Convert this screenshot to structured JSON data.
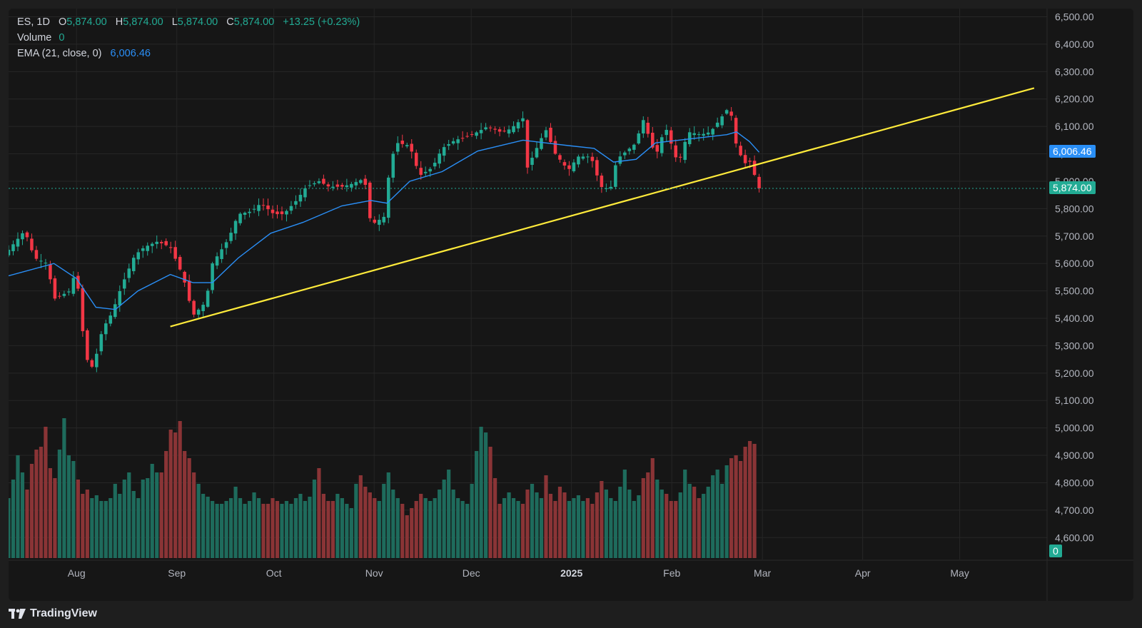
{
  "legend": {
    "symbol": "ES, 1D",
    "o_label": "O",
    "o_value": "5,874.00",
    "h_label": "H",
    "h_value": "5,874.00",
    "l_label": "L",
    "l_value": "5,874.00",
    "c_label": "C",
    "c_value": "5,874.00",
    "change": "+13.25 (+0.23%)",
    "volume_label": "Volume",
    "volume_value": "0",
    "ema_label": "EMA (21, close, 0)",
    "ema_value": "6,006.46"
  },
  "tags": {
    "ema_price": "6,006.46",
    "last_price": "5,874.00",
    "volume": "0"
  },
  "brand": {
    "name": "TradingView"
  },
  "colors": {
    "up": "#22ab94",
    "down": "#f23645",
    "ema": "#2a8ff7",
    "trendline": "#ffeb3b",
    "vol_up": "#1e6b5c",
    "vol_down": "#8a3436",
    "background": "#161616",
    "grid": "#262626"
  },
  "chart_data": {
    "type": "candlestick",
    "ylim": [
      4520,
      6530
    ],
    "y_ticks": [
      "6,500.00",
      "6,400.00",
      "6,300.00",
      "6,200.00",
      "6,100.00",
      "6,000.00",
      "5,900.00",
      "5,800.00",
      "5,700.00",
      "5,600.00",
      "5,500.00",
      "5,400.00",
      "5,300.00",
      "5,200.00",
      "5,100.00",
      "5,000.00",
      "4,900.00",
      "4,800.00",
      "4,700.00",
      "4,600.00"
    ],
    "y_tick_values": [
      6500,
      6400,
      6300,
      6200,
      6100,
      6000,
      5900,
      5800,
      5700,
      5600,
      5500,
      5400,
      5300,
      5200,
      5100,
      5000,
      4900,
      4800,
      4700,
      4600
    ],
    "x_ticks": [
      {
        "label": "Aug",
        "date": "2024-08-01"
      },
      {
        "label": "Sep",
        "date": "2024-09-01"
      },
      {
        "label": "Oct",
        "date": "2024-10-01"
      },
      {
        "label": "Nov",
        "date": "2024-11-01"
      },
      {
        "label": "Dec",
        "date": "2024-12-01"
      },
      {
        "label": "2025",
        "date": "2025-01-01",
        "bold": true
      },
      {
        "label": "Feb",
        "date": "2025-02-01"
      },
      {
        "label": "Mar",
        "date": "2025-03-01"
      },
      {
        "label": "Apr",
        "date": "2025-04-01"
      },
      {
        "label": "May",
        "date": "2025-05-01"
      }
    ],
    "x_range": [
      "2024-07-11",
      "2025-05-28"
    ],
    "ohlc_points": [
      [
        "2024-07-11",
        5650
      ],
      [
        "2024-07-16",
        5720
      ],
      [
        "2024-07-19",
        5620
      ],
      [
        "2024-07-23",
        5600
      ],
      [
        "2024-07-25",
        5470
      ],
      [
        "2024-07-30",
        5500
      ],
      [
        "2024-08-01",
        5590
      ],
      [
        "2024-08-02",
        5420
      ],
      [
        "2024-08-05",
        5200
      ],
      [
        "2024-08-07",
        5260
      ],
      [
        "2024-08-09",
        5360
      ],
      [
        "2024-08-12",
        5420
      ],
      [
        "2024-08-15",
        5520
      ],
      [
        "2024-08-19",
        5630
      ],
      [
        "2024-08-22",
        5660
      ],
      [
        "2024-08-26",
        5680
      ],
      [
        "2024-08-30",
        5660
      ],
      [
        "2024-09-03",
        5550
      ],
      [
        "2024-09-06",
        5410
      ],
      [
        "2024-09-10",
        5460
      ],
      [
        "2024-09-12",
        5600
      ],
      [
        "2024-09-17",
        5690
      ],
      [
        "2024-09-20",
        5780
      ],
      [
        "2024-09-24",
        5790
      ],
      [
        "2024-09-27",
        5820
      ],
      [
        "2024-10-01",
        5780
      ],
      [
        "2024-10-04",
        5780
      ],
      [
        "2024-10-08",
        5830
      ],
      [
        "2024-10-11",
        5880
      ],
      [
        "2024-10-15",
        5900
      ],
      [
        "2024-10-18",
        5880
      ],
      [
        "2024-10-22",
        5880
      ],
      [
        "2024-10-25",
        5890
      ],
      [
        "2024-10-29",
        5910
      ],
      [
        "2024-10-31",
        5740
      ],
      [
        "2024-11-04",
        5770
      ],
      [
        "2024-11-06",
        5970
      ],
      [
        "2024-11-08",
        6040
      ],
      [
        "2024-11-12",
        6030
      ],
      [
        "2024-11-15",
        5920
      ],
      [
        "2024-11-19",
        5950
      ],
      [
        "2024-11-22",
        6020
      ],
      [
        "2024-11-26",
        6050
      ],
      [
        "2024-11-29",
        6060
      ],
      [
        "2024-12-03",
        6080
      ],
      [
        "2024-12-06",
        6100
      ],
      [
        "2024-12-10",
        6080
      ],
      [
        "2024-12-13",
        6090
      ],
      [
        "2024-12-17",
        6130
      ],
      [
        "2024-12-18",
        5940
      ],
      [
        "2024-12-20",
        5990
      ],
      [
        "2024-12-24",
        6090
      ],
      [
        "2024-12-27",
        6000
      ],
      [
        "2024-12-31",
        5940
      ],
      [
        "2025-01-03",
        5990
      ],
      [
        "2025-01-07",
        5990
      ],
      [
        "2025-01-10",
        5880
      ],
      [
        "2025-01-13",
        5870
      ],
      [
        "2025-01-15",
        5980
      ],
      [
        "2025-01-21",
        6040
      ],
      [
        "2025-01-23",
        6130
      ],
      [
        "2025-01-27",
        5990
      ],
      [
        "2025-01-30",
        6100
      ],
      [
        "2025-02-03",
        5960
      ],
      [
        "2025-02-06",
        6080
      ],
      [
        "2025-02-10",
        6070
      ],
      [
        "2025-02-13",
        6080
      ],
      [
        "2025-02-18",
        6160
      ],
      [
        "2025-02-20",
        6130
      ],
      [
        "2025-02-21",
        6020
      ],
      [
        "2025-02-24",
        5960
      ],
      [
        "2025-02-26",
        5980
      ],
      [
        "2025-02-27",
        5880
      ],
      [
        "2025-02-28",
        5874
      ]
    ],
    "ema_series": [
      [
        "2024-07-11",
        5555
      ],
      [
        "2024-07-25",
        5600
      ],
      [
        "2024-08-01",
        5545
      ],
      [
        "2024-08-07",
        5440
      ],
      [
        "2024-08-13",
        5432
      ],
      [
        "2024-08-20",
        5500
      ],
      [
        "2024-08-30",
        5560
      ],
      [
        "2024-09-06",
        5530
      ],
      [
        "2024-09-12",
        5530
      ],
      [
        "2024-09-20",
        5620
      ],
      [
        "2024-09-30",
        5710
      ],
      [
        "2024-10-10",
        5750
      ],
      [
        "2024-10-22",
        5810
      ],
      [
        "2024-10-31",
        5830
      ],
      [
        "2024-11-05",
        5820
      ],
      [
        "2024-11-12",
        5900
      ],
      [
        "2024-11-22",
        5935
      ],
      [
        "2024-12-03",
        6010
      ],
      [
        "2024-12-17",
        6050
      ],
      [
        "2024-12-31",
        6030
      ],
      [
        "2025-01-08",
        6020
      ],
      [
        "2025-01-14",
        5970
      ],
      [
        "2025-01-21",
        5980
      ],
      [
        "2025-01-27",
        6040
      ],
      [
        "2025-02-07",
        6055
      ],
      [
        "2025-02-18",
        6070
      ],
      [
        "2025-02-21",
        6080
      ],
      [
        "2025-02-25",
        6045
      ],
      [
        "2025-02-28",
        6006
      ]
    ],
    "trendline": {
      "from": [
        "2024-08-30",
        5370
      ],
      "to": [
        "2025-05-24",
        6240
      ]
    },
    "last_price": 5874,
    "ema_last": 6006.46,
    "volume_bars": [
      0.42,
      0.55,
      0.72,
      0.6,
      0.48,
      0.66,
      0.76,
      0.78,
      0.92,
      0.63,
      0.56,
      0.76,
      0.98,
      0.72,
      0.68,
      0.55,
      0.45,
      0.48,
      0.42,
      0.44,
      0.4,
      0.4,
      0.42,
      0.52,
      0.45,
      0.55,
      0.6,
      0.47,
      0.42,
      0.55,
      0.56,
      0.66,
      0.6,
      0.6,
      0.75,
      0.9,
      0.88,
      0.96,
      0.75,
      0.7,
      0.6,
      0.52,
      0.45,
      0.43,
      0.4,
      0.38,
      0.38,
      0.4,
      0.42,
      0.5,
      0.42,
      0.38,
      0.4,
      0.46,
      0.42,
      0.38,
      0.38,
      0.42,
      0.4,
      0.38,
      0.4,
      0.38,
      0.42,
      0.45,
      0.4,
      0.43,
      0.55,
      0.63,
      0.45,
      0.4,
      0.4,
      0.45,
      0.42,
      0.38,
      0.35,
      0.52,
      0.58,
      0.5,
      0.46,
      0.42,
      0.4,
      0.52,
      0.6,
      0.48,
      0.42,
      0.38,
      0.3,
      0.35,
      0.4,
      0.45,
      0.42,
      0.4,
      0.42,
      0.48,
      0.55,
      0.62,
      0.48,
      0.42,
      0.4,
      0.38,
      0.52,
      0.75,
      0.92,
      0.88,
      0.78,
      0.56,
      0.38,
      0.42,
      0.46,
      0.42,
      0.4,
      0.38,
      0.48,
      0.52,
      0.46,
      0.42,
      0.58,
      0.45,
      0.4,
      0.5,
      0.46,
      0.4,
      0.42,
      0.44,
      0.4,
      0.42,
      0.38,
      0.46,
      0.54,
      0.48,
      0.42,
      0.4,
      0.5,
      0.62,
      0.48,
      0.4,
      0.44,
      0.56,
      0.6,
      0.7,
      0.55,
      0.48,
      0.45,
      0.4,
      0.4,
      0.46,
      0.62,
      0.52,
      0.5,
      0.42,
      0.45,
      0.5,
      0.58,
      0.62,
      0.52,
      0.65,
      0.7,
      0.72,
      0.68,
      0.78,
      0.82,
      0.8,
      0.0
    ]
  }
}
